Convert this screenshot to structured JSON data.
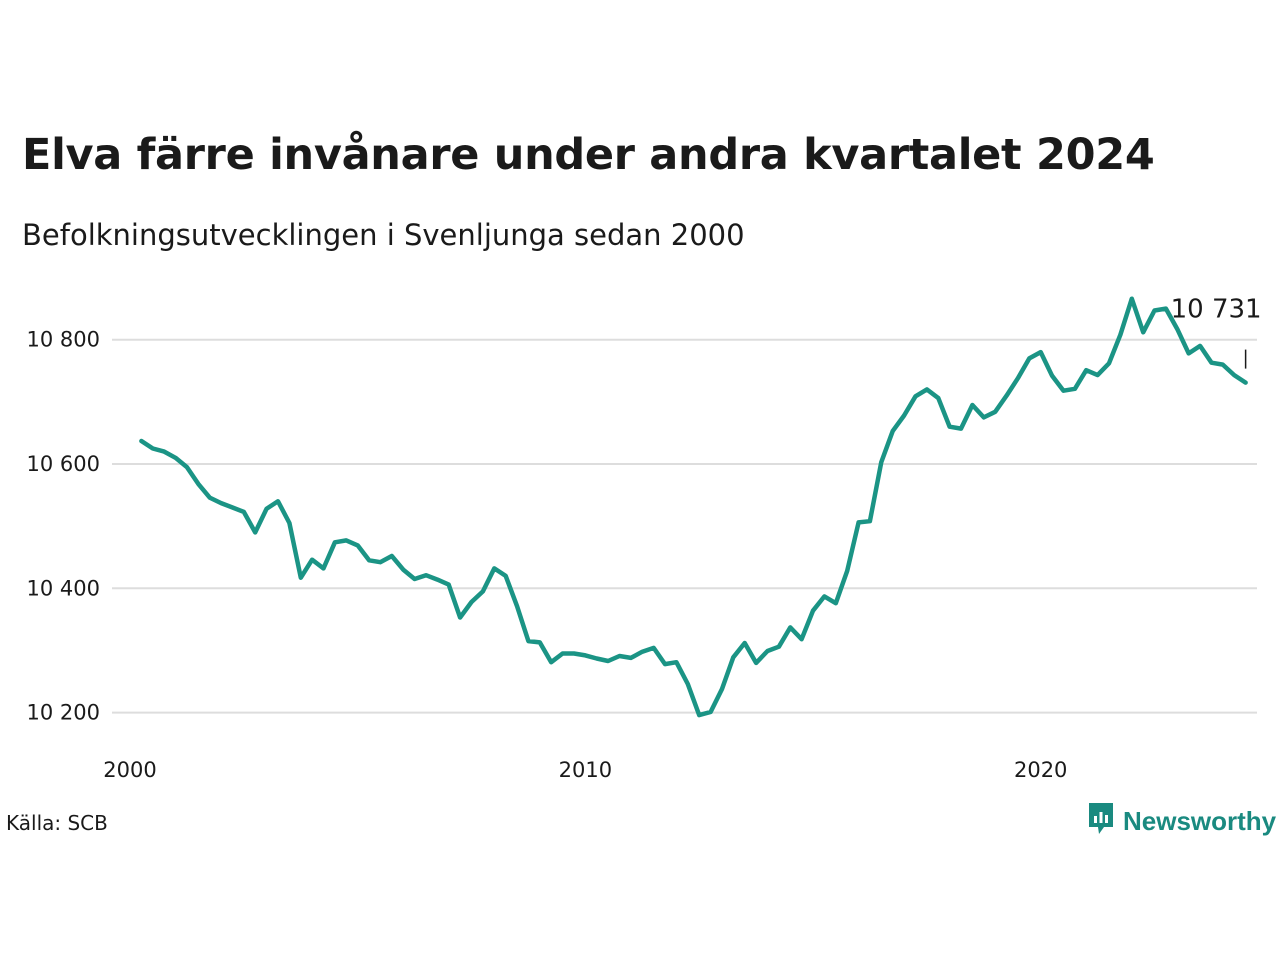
{
  "title": "Elva färre invånare under andra kvartalet 2024",
  "subtitle": "Befolkningsutvecklingen i Svenljunga sedan 2000",
  "source": "Källa: SCB",
  "brand": {
    "name": "Newsworthy",
    "icon": "newsworthy-logo-icon",
    "color": "#1a8a80"
  },
  "chart_data": {
    "type": "line",
    "color": "#1b9485",
    "grid": true,
    "x_ticks": [
      2000,
      2010,
      2020
    ],
    "x_tick_labels": [
      "2000",
      "2010",
      "2020"
    ],
    "y_ticks": [
      10200,
      10400,
      10600,
      10800
    ],
    "y_tick_labels": [
      "10 200",
      "10 400",
      "10 600",
      "10 800"
    ],
    "xlim": [
      2000,
      2024.75
    ],
    "ylim": [
      10180,
      10880
    ],
    "last_value_label": "10 731",
    "x": [
      2000.25,
      2000.5,
      2000.75,
      2001,
      2001.25,
      2001.5,
      2001.75,
      2002,
      2002.25,
      2002.5,
      2002.75,
      2003,
      2003.25,
      2003.5,
      2003.75,
      2004,
      2004.25,
      2004.5,
      2004.75,
      2005,
      2005.25,
      2005.5,
      2005.75,
      2006,
      2006.25,
      2006.5,
      2006.75,
      2007,
      2007.25,
      2007.5,
      2007.75,
      2008,
      2008.25,
      2008.5,
      2008.75,
      2009,
      2009.25,
      2009.5,
      2009.75,
      2010,
      2010.25,
      2010.5,
      2010.75,
      2011,
      2011.25,
      2011.5,
      2011.75,
      2012,
      2012.25,
      2012.5,
      2012.75,
      2013,
      2013.25,
      2013.5,
      2013.75,
      2014,
      2014.25,
      2014.5,
      2014.75,
      2015,
      2015.25,
      2015.5,
      2015.75,
      2016,
      2016.25,
      2016.5,
      2016.75,
      2017,
      2017.25,
      2017.5,
      2017.75,
      2018,
      2018.25,
      2018.5,
      2018.75,
      2019,
      2019.25,
      2019.5,
      2019.75,
      2020,
      2020.25,
      2020.5,
      2020.75,
      2021,
      2021.25,
      2021.5,
      2021.75,
      2022,
      2022.25,
      2022.5,
      2022.75,
      2023,
      2023.25,
      2023.5,
      2023.75,
      2024,
      2024.25,
      2024.5
    ],
    "values": [
      10637,
      10625,
      10620,
      10610,
      10595,
      10568,
      10546,
      10537,
      10530,
      10523,
      10490,
      10528,
      10540,
      10505,
      10417,
      10446,
      10432,
      10474,
      10477,
      10469,
      10445,
      10442,
      10452,
      10430,
      10415,
      10421,
      10414,
      10406,
      10353,
      10378,
      10395,
      10432,
      10420,
      10371,
      10315,
      10313,
      10281,
      10295,
      10295,
      10292,
      10287,
      10283,
      10291,
      10288,
      10298,
      10304,
      10278,
      10281,
      10246,
      10196,
      10201,
      10238,
      10289,
      10312,
      10280,
      10299,
      10306,
      10337,
      10318,
      10364,
      10387,
      10376,
      10428,
      10506,
      10508,
      10603,
      10653,
      10678,
      10709,
      10720,
      10706,
      10660,
      10657,
      10695,
      10675,
      10684,
      10710,
      10738,
      10770,
      10780,
      10742,
      10718,
      10721,
      10751,
      10743,
      10762,
      10808,
      10866,
      10812,
      10847,
      10850,
      10817,
      10778,
      10790,
      10763,
      10760,
      10743,
      10731
    ]
  }
}
